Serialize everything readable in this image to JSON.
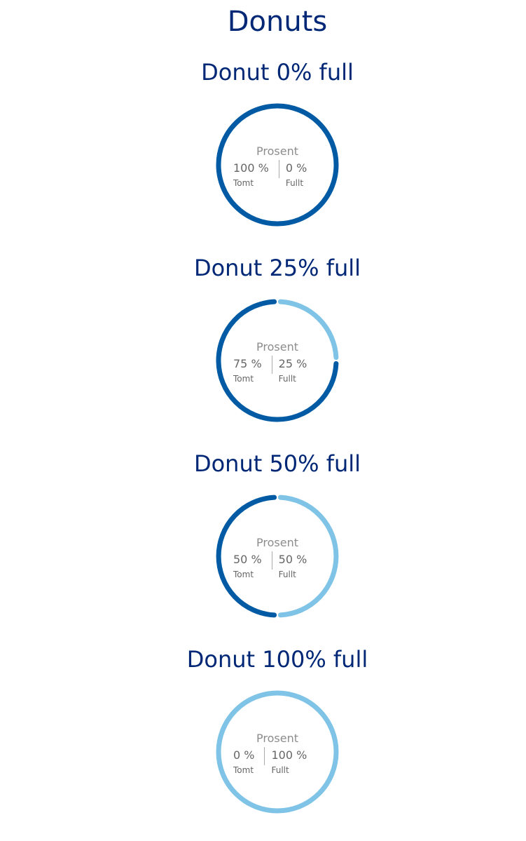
{
  "page_title": "Donuts",
  "colors": {
    "title": "#002776",
    "empty": "#005aa4",
    "full": "#7fc4e6",
    "center_label": "#8c8c8c",
    "stat_text": "#666666"
  },
  "chart_data": [
    {
      "type": "pie",
      "title": "Donut 0% full",
      "center_label": "Prosent",
      "categories": [
        "Tomt",
        "Fullt"
      ],
      "values": [
        100,
        0
      ],
      "value_labels": [
        "100 %",
        "0 %"
      ]
    },
    {
      "type": "pie",
      "title": "Donut 25% full",
      "center_label": "Prosent",
      "categories": [
        "Tomt",
        "Fullt"
      ],
      "values": [
        75,
        25
      ],
      "value_labels": [
        "75 %",
        "25 %"
      ]
    },
    {
      "type": "pie",
      "title": "Donut 50% full",
      "center_label": "Prosent",
      "categories": [
        "Tomt",
        "Fullt"
      ],
      "values": [
        50,
        50
      ],
      "value_labels": [
        "50 %",
        "50 %"
      ]
    },
    {
      "type": "pie",
      "title": "Donut 100% full",
      "center_label": "Prosent",
      "categories": [
        "Tomt",
        "Fullt"
      ],
      "values": [
        0,
        100
      ],
      "value_labels": [
        "0 %",
        "100 %"
      ]
    }
  ]
}
